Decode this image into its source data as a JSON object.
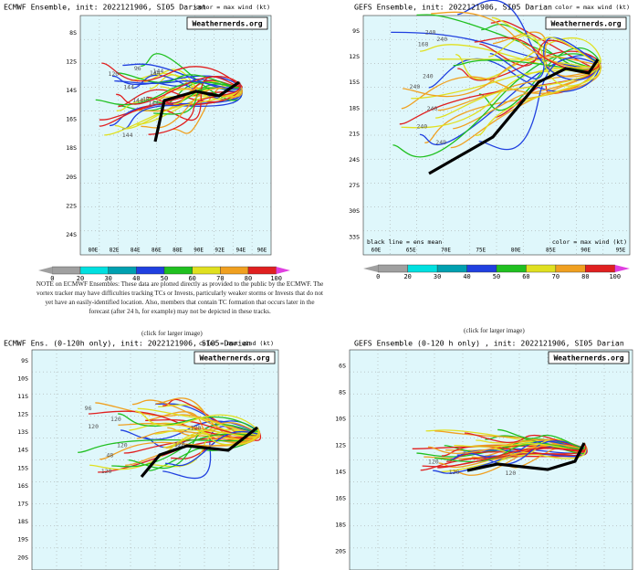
{
  "note": "NOTE on ECMWF Ensembles: These data are plotted directly as provided to the public by the ECMWF. The vortex tracker may have difficulties tracking TCs or Invests, particularly weaker storms or Invests that do not yet have an easily-identified location. Also, members that contain TC formation that occurs later in the forecast (after 24 h, for example) may not be depicted in these tracks.",
  "click_labels": [
    "(click for larger image)",
    "(click for larger image)"
  ],
  "colorbar_colors": [
    "#a0a0a0",
    "#00e0e0",
    "#00a0b0",
    "#2040e0",
    "#20c020",
    "#e0e020",
    "#f0a020",
    "#e02020",
    "#a01010",
    "#e040e0"
  ],
  "panels": [
    {
      "title": "ECMWF Ensemble, init: 2022121906, SI05 Darian",
      "subtitle": "color = max wind (kt)",
      "watermark": "Weathernerds.org",
      "y_labels": [
        "8S",
        "12S",
        "14S",
        "16S",
        "18S",
        "20S",
        "22S",
        "24S"
      ],
      "x_labels": [
        "80E",
        "82E",
        "84E",
        "86E",
        "88E",
        "90E",
        "92E",
        "94E",
        "96E"
      ],
      "colorbar_labels": [
        "0",
        "20",
        "30",
        "40",
        "50",
        "60",
        "70",
        "80",
        "100"
      ],
      "track_labels": [
        "120",
        "96",
        "144",
        "144",
        "144",
        "144",
        "144",
        "48",
        "144"
      ]
    },
    {
      "title": "GEFS Ensemble, init: 2022121906, SI05 Darian",
      "subtitle": "color = max wind (kt)",
      "watermark": "Weathernerds.org",
      "y_labels": [
        "9S",
        "12S",
        "15S",
        "18S",
        "21S",
        "24S",
        "27S",
        "30S",
        "33S"
      ],
      "x_labels": [
        "60E",
        "65E",
        "70E",
        "75E",
        "80E",
        "85E",
        "90E",
        "95E"
      ],
      "legend_note": "black line = ens mean",
      "legend_color": "color = max wind (kt)",
      "colorbar_labels": [
        "0",
        "20",
        "30",
        "40",
        "50",
        "60",
        "70",
        "80",
        "100"
      ],
      "track_labels": [
        "240",
        "240",
        "240",
        "240",
        "240",
        "240",
        "168",
        "240"
      ]
    },
    {
      "title": "ECMWF Ens. (0-120h only), init: 2022121906, SI05 Darian",
      "subtitle": "color = max wind (kt)",
      "watermark": "Weathernerds.org",
      "y_labels": [
        "9S",
        "10S",
        "11S",
        "12S",
        "13S",
        "14S",
        "15S",
        "16S",
        "17S",
        "18S",
        "19S",
        "20S"
      ],
      "track_labels": [
        "120",
        "96",
        "120",
        "120",
        "120",
        "120",
        "120",
        "48"
      ]
    },
    {
      "title": "GEFS Ensemble (0-120 h only) , init: 2022121906, SI05 Darian",
      "watermark": "Weathernerds.org",
      "y_labels": [
        "6S",
        "8S",
        "10S",
        "12S",
        "14S",
        "16S",
        "18S",
        "20S"
      ],
      "track_labels": [
        "120",
        "120",
        "120"
      ]
    }
  ]
}
